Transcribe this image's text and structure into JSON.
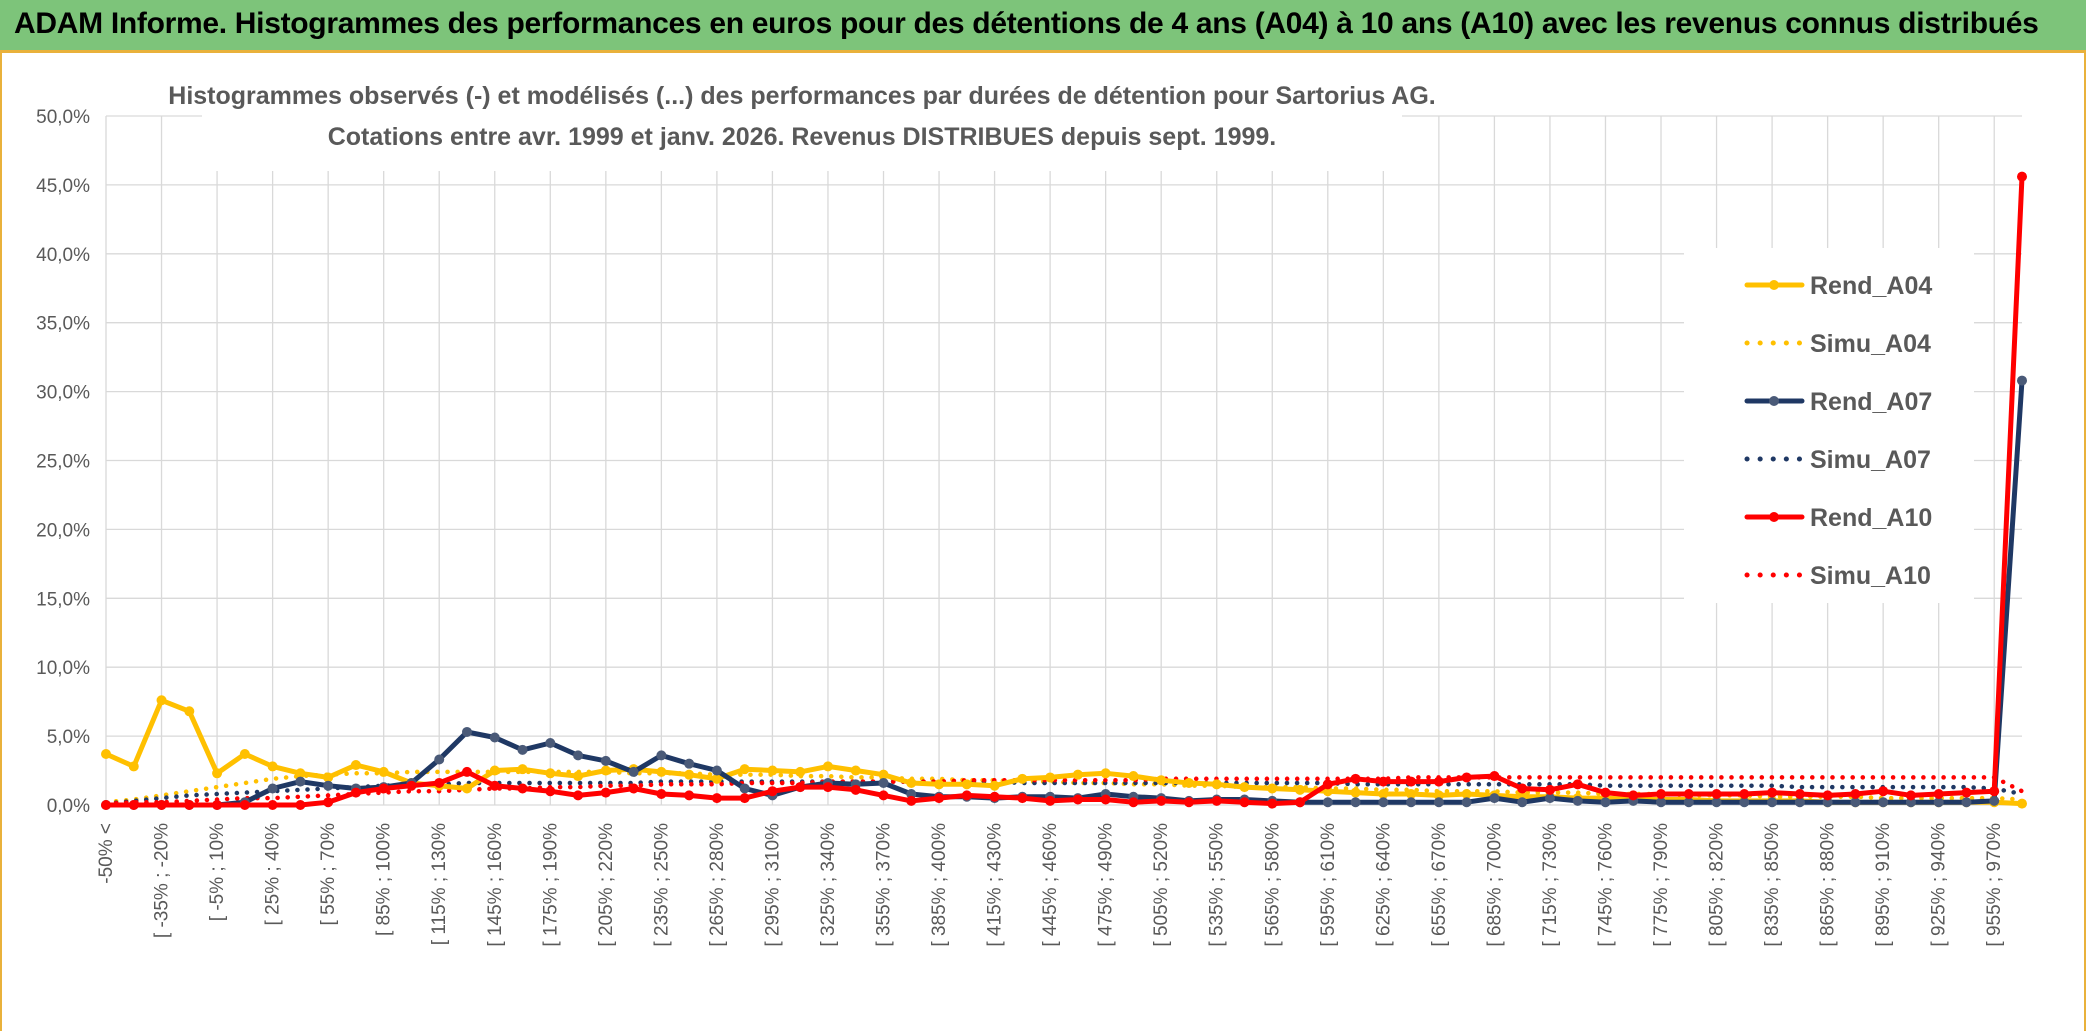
{
  "header": {
    "title": "ADAM Informe. Histogrammes des performances en euros pour des détentions de 4 ans (A04) à 10 ans (A10) avec les revenus connus distribués"
  },
  "chart_data": {
    "type": "line",
    "title": "Histogrammes observés (-) et modélisés (...) des performances par durées de détention pour Sartorius AG.",
    "subtitle": "Cotations entre avr. 1999 et janv. 2026. Revenus DISTRIBUES depuis sept. 1999.",
    "y_ticks": [
      "0,0%",
      "5,0%",
      "10,0%",
      "15,0%",
      "20,0%",
      "25,0%",
      "30,0%",
      "35,0%",
      "40,0%",
      "45,0%",
      "50,0%"
    ],
    "ylim": [
      0,
      50
    ],
    "x_ticks": [
      "-50% <",
      "[ -35% ; -20%",
      "[ -5% ; 10%",
      "[ 25% ; 40%",
      "[ 55% ; 70%",
      "[ 85% ; 100%",
      "[ 115% ; 130%",
      "[ 145% ; 160%",
      "[ 175% ; 190%",
      "[ 205% ; 220%",
      "[ 235% ; 250%",
      "[ 265% ; 280%",
      "[ 295% ; 310%",
      "[ 325% ; 340%",
      "[ 355% ; 370%",
      "[ 385% ; 400%",
      "[ 415% ; 430%",
      "[ 445% ; 460%",
      "[ 475% ; 490%",
      "[ 505% ; 520%",
      "[ 535% ; 550%",
      "[ 565% ; 580%",
      "[ 595% ; 610%",
      "[ 625% ; 640%",
      "[ 655% ; 670%",
      "[ 685% ; 700%",
      "[ 715% ; 730%",
      "[ 745% ; 760%",
      "[ 775% ; 790%",
      "[ 805% ; 820%",
      "[ 835% ; 850%",
      "[ 865% ; 880%",
      "[ 895% ; 910%",
      "[ 925% ; 940%",
      "[ 955% ; 970%"
    ],
    "n_points": 70,
    "legend_position": "right",
    "grid": true,
    "series": [
      {
        "name": "Rend_A04",
        "style": "solid",
        "markers": true,
        "color": "#ffc000",
        "values": [
          3.7,
          2.8,
          7.6,
          6.8,
          2.3,
          3.7,
          2.8,
          2.3,
          2.0,
          2.9,
          2.4,
          1.6,
          1.4,
          1.2,
          2.5,
          2.6,
          2.3,
          2.1,
          2.5,
          2.6,
          2.4,
          2.2,
          1.9,
          2.6,
          2.5,
          2.4,
          2.8,
          2.5,
          2.2,
          1.6,
          1.5,
          1.5,
          1.4,
          1.9,
          2.0,
          2.2,
          2.3,
          2.1,
          1.8,
          1.6,
          1.5,
          1.3,
          1.2,
          1.1,
          1.0,
          0.9,
          0.8,
          0.8,
          0.7,
          0.8,
          0.7,
          0.6,
          0.6,
          0.5,
          0.5,
          0.4,
          0.4,
          0.4,
          0.3,
          0.3,
          0.3,
          0.3,
          0.2,
          0.2,
          0.2,
          0.2,
          0.2,
          0.2,
          0.2,
          0.1
        ]
      },
      {
        "name": "Simu_A04",
        "style": "dotted",
        "markers": false,
        "color": "#ffc000",
        "values": [
          0.2,
          0.4,
          0.7,
          1.0,
          1.3,
          1.6,
          1.9,
          2.1,
          2.2,
          2.3,
          2.3,
          2.4,
          2.4,
          2.4,
          2.4,
          2.4,
          2.4,
          2.4,
          2.4,
          2.3,
          2.3,
          2.3,
          2.2,
          2.2,
          2.2,
          2.1,
          2.1,
          2.0,
          2.0,
          1.9,
          1.9,
          1.8,
          1.8,
          1.7,
          1.7,
          1.6,
          1.6,
          1.5,
          1.5,
          1.4,
          1.4,
          1.3,
          1.3,
          1.3,
          1.2,
          1.2,
          1.1,
          1.1,
          1.0,
          1.0,
          1.0,
          0.9,
          0.9,
          0.9,
          0.8,
          0.8,
          0.8,
          0.7,
          0.7,
          0.7,
          0.6,
          0.6,
          0.6,
          0.6,
          0.5,
          0.5,
          0.5,
          0.5,
          0.5,
          0.4
        ]
      },
      {
        "name": "Rend_A07",
        "style": "solid",
        "markers": true,
        "color": "#1f3864",
        "values": [
          0.0,
          0.0,
          0.0,
          0.0,
          0.0,
          0.2,
          1.2,
          1.7,
          1.4,
          1.2,
          1.3,
          1.6,
          3.3,
          5.3,
          4.9,
          4.0,
          4.5,
          3.6,
          3.2,
          2.4,
          3.6,
          3.0,
          2.5,
          1.2,
          0.7,
          1.3,
          1.6,
          1.5,
          1.6,
          0.8,
          0.6,
          0.6,
          0.5,
          0.6,
          0.6,
          0.5,
          0.8,
          0.6,
          0.5,
          0.3,
          0.4,
          0.4,
          0.3,
          0.2,
          0.2,
          0.2,
          0.2,
          0.2,
          0.2,
          0.2,
          0.5,
          0.2,
          0.5,
          0.3,
          0.2,
          0.3,
          0.2,
          0.2,
          0.2,
          0.2,
          0.2,
          0.2,
          0.2,
          0.2,
          0.2,
          0.2,
          0.2,
          0.2,
          0.3,
          30.8
        ]
      },
      {
        "name": "Simu_A07",
        "style": "dotted",
        "markers": false,
        "color": "#1f3864",
        "values": [
          0.1,
          0.3,
          0.5,
          0.7,
          0.8,
          0.9,
          1.0,
          1.1,
          1.2,
          1.3,
          1.4,
          1.5,
          1.5,
          1.6,
          1.6,
          1.6,
          1.6,
          1.6,
          1.6,
          1.6,
          1.7,
          1.7,
          1.7,
          1.7,
          1.7,
          1.7,
          1.7,
          1.7,
          1.7,
          1.7,
          1.7,
          1.7,
          1.7,
          1.6,
          1.6,
          1.6,
          1.6,
          1.6,
          1.6,
          1.6,
          1.6,
          1.6,
          1.6,
          1.6,
          1.6,
          1.5,
          1.5,
          1.5,
          1.5,
          1.5,
          1.5,
          1.5,
          1.5,
          1.5,
          1.4,
          1.4,
          1.4,
          1.4,
          1.4,
          1.4,
          1.4,
          1.3,
          1.3,
          1.3,
          1.3,
          1.3,
          1.3,
          1.3,
          1.2,
          0.8
        ]
      },
      {
        "name": "Rend_A10",
        "style": "solid",
        "markers": true,
        "color": "#ff0000",
        "values": [
          0.0,
          0.0,
          0.0,
          0.0,
          0.0,
          0.0,
          0.0,
          0.0,
          0.2,
          0.9,
          1.2,
          1.4,
          1.6,
          2.4,
          1.4,
          1.2,
          1.0,
          0.7,
          0.9,
          1.2,
          0.8,
          0.7,
          0.5,
          0.5,
          1.0,
          1.3,
          1.3,
          1.1,
          0.7,
          0.3,
          0.5,
          0.7,
          0.6,
          0.5,
          0.3,
          0.4,
          0.4,
          0.2,
          0.3,
          0.2,
          0.3,
          0.2,
          0.1,
          0.2,
          1.5,
          1.9,
          1.7,
          1.7,
          1.7,
          2.0,
          2.1,
          1.2,
          1.1,
          1.5,
          0.9,
          0.7,
          0.8,
          0.8,
          0.8,
          0.8,
          0.9,
          0.8,
          0.7,
          0.8,
          1.0,
          0.7,
          0.8,
          0.9,
          1.0,
          45.6
        ]
      },
      {
        "name": "Simu_A10",
        "style": "dotted",
        "markers": false,
        "color": "#ff0000",
        "values": [
          0.1,
          0.2,
          0.2,
          0.3,
          0.4,
          0.5,
          0.5,
          0.6,
          0.7,
          0.8,
          0.9,
          1.0,
          1.0,
          1.1,
          1.2,
          1.2,
          1.3,
          1.3,
          1.4,
          1.4,
          1.5,
          1.5,
          1.5,
          1.6,
          1.6,
          1.6,
          1.7,
          1.7,
          1.7,
          1.7,
          1.7,
          1.8,
          1.8,
          1.8,
          1.8,
          1.8,
          1.8,
          1.8,
          1.9,
          1.9,
          1.9,
          1.9,
          1.9,
          1.9,
          1.9,
          1.9,
          1.9,
          2.0,
          2.0,
          2.0,
          2.0,
          2.0,
          2.0,
          2.0,
          2.0,
          2.0,
          2.0,
          2.0,
          2.0,
          2.0,
          2.0,
          2.0,
          2.0,
          2.0,
          2.0,
          2.0,
          2.0,
          2.0,
          2.0,
          1.0
        ]
      }
    ]
  }
}
